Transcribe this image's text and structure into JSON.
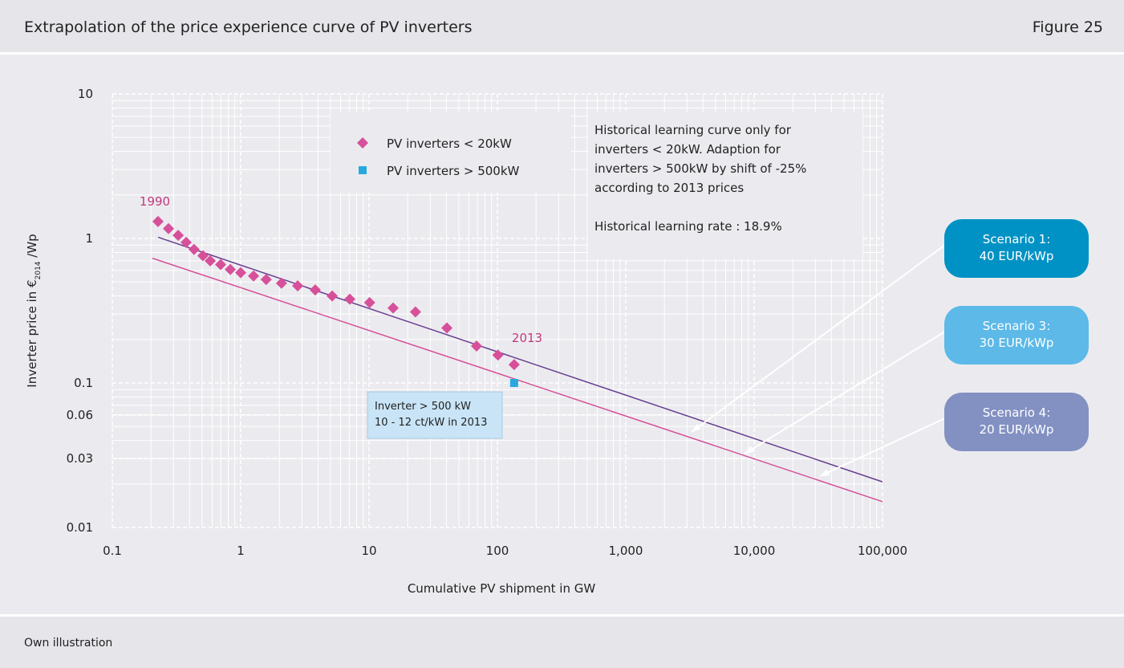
{
  "header": {
    "title": "Extrapolation of the price experience curve of PV inverters",
    "figure": "Figure 25"
  },
  "footer": {
    "source": "Own illustration"
  },
  "chart_data": {
    "type": "scatter",
    "x_label": "Cumulative PV shipment in GW",
    "y_label": {
      "main": "Inverter price in €",
      "sub": "2014",
      "unit": " /Wp"
    },
    "log_x": true,
    "log_y": true,
    "grid": true,
    "minor_grid": true,
    "xlim": [
      0.1,
      100000
    ],
    "ylim": [
      0.01,
      10
    ],
    "xticks": [
      0.1,
      1,
      10,
      100,
      {
        "value": 1000,
        "label": "1,000"
      },
      {
        "value": 10000,
        "label": "10,000"
      },
      {
        "value": 100000,
        "label": "100,000"
      }
    ],
    "yticks": [
      0.01,
      0.03,
      0.06,
      0.1,
      1,
      10
    ],
    "series": [
      {
        "name": "PV inverters < 20kW",
        "color": "#d6509a",
        "marker": "diamond",
        "x": [
          0.227,
          0.274,
          0.326,
          0.376,
          0.433,
          0.508,
          0.579,
          0.698,
          0.83,
          1.0,
          1.26,
          1.58,
          2.08,
          2.78,
          3.81,
          5.16,
          7.08,
          10.1,
          15.4,
          23.0,
          40.4,
          68.8,
          101,
          135
        ],
        "values": [
          1.31,
          1.17,
          1.05,
          0.94,
          0.84,
          0.76,
          0.7,
          0.66,
          0.61,
          0.58,
          0.55,
          0.52,
          0.49,
          0.47,
          0.44,
          0.4,
          0.38,
          0.36,
          0.33,
          0.31,
          0.24,
          0.18,
          0.156,
          0.134
        ]
      },
      {
        "name": "PV inverters > 500kW",
        "color": "#29a8e0",
        "marker": "square",
        "x": [
          135
        ],
        "values": [
          0.1
        ]
      }
    ],
    "trend_lines": [
      {
        "color": "#6a3d8f",
        "x": [
          0.227,
          100000
        ],
        "values": [
          1.02,
          0.0207
        ]
      },
      {
        "color": "#d6509a",
        "x": [
          0.205,
          100000
        ],
        "values": [
          0.73,
          0.0151
        ]
      }
    ],
    "annotations": {
      "start": "1990",
      "end": "2013",
      "note_box": [
        "Inverter > 500 kW",
        "10 - 12 ct/kW in 2013"
      ],
      "text_box": [
        "Historical learning curve only for",
        "inverters < 20kW. Adaption for",
        "inverters > 500kW by shift of -25%",
        "according to 2013 prices"
      ],
      "learning_rate": "Historical learning rate : 18.9%"
    },
    "scenarios": [
      {
        "lines": [
          "Scenario 1:",
          "40 EUR/kWp"
        ],
        "color": "#0092c4"
      },
      {
        "lines": [
          "Scenario 3:",
          "30 EUR/kWp"
        ],
        "color": "#5cb9e8"
      },
      {
        "lines": [
          "Scenario 4:",
          "20 EUR/kWp"
        ],
        "color": "#8291c2"
      }
    ]
  }
}
